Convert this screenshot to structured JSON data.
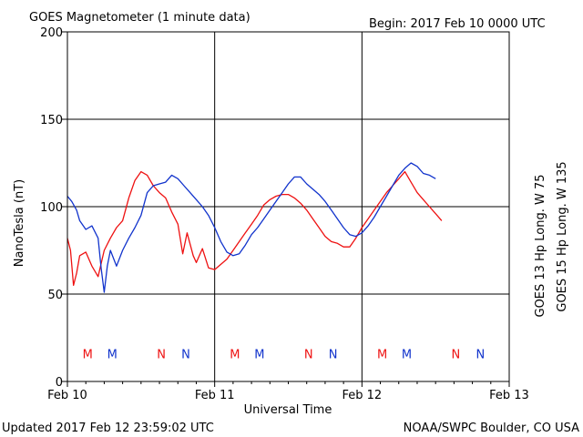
{
  "chart_data": {
    "type": "line",
    "title": "GOES Magnetometer (1 minute data)",
    "begin_label": "Begin:  2017 Feb 10 0000 UTC",
    "xlabel": "Universal Time",
    "ylabel": "NanoTesla (nT)",
    "ylim": [
      0,
      200
    ],
    "xlim": [
      0,
      72
    ],
    "y_ticks": [
      0,
      50,
      100,
      150,
      200
    ],
    "x_ticks": [
      {
        "value": 0,
        "label": "Feb 10"
      },
      {
        "value": 24,
        "label": "Feb 11"
      },
      {
        "value": 48,
        "label": "Feb 12"
      },
      {
        "value": 72,
        "label": "Feb 13"
      }
    ],
    "grid": true,
    "x_unit": "hours since 2017 Feb 10 0000 UTC",
    "series": [
      {
        "name": "GOES 13 Hp  Long. W 75",
        "color": "#ee1111",
        "points": [
          [
            0,
            82
          ],
          [
            0.5,
            75
          ],
          [
            1,
            55
          ],
          [
            1.5,
            62
          ],
          [
            2,
            72
          ],
          [
            3,
            74
          ],
          [
            4,
            66
          ],
          [
            5,
            60
          ],
          [
            6,
            75
          ],
          [
            7,
            82
          ],
          [
            8,
            88
          ],
          [
            9,
            92
          ],
          [
            10,
            105
          ],
          [
            11,
            115
          ],
          [
            12,
            120
          ],
          [
            13,
            118
          ],
          [
            14,
            112
          ],
          [
            15,
            108
          ],
          [
            16,
            105
          ],
          [
            17,
            97
          ],
          [
            18,
            90
          ],
          [
            18.8,
            73
          ],
          [
            19.5,
            85
          ],
          [
            20.5,
            72
          ],
          [
            21,
            68
          ],
          [
            22,
            76
          ],
          [
            23,
            65
          ],
          [
            24,
            64
          ],
          [
            25,
            67
          ],
          [
            26,
            70
          ],
          [
            27,
            75
          ],
          [
            28,
            80
          ],
          [
            29,
            85
          ],
          [
            30,
            90
          ],
          [
            31,
            95
          ],
          [
            32,
            101
          ],
          [
            33,
            104
          ],
          [
            34,
            106
          ],
          [
            35,
            107
          ],
          [
            36,
            107
          ],
          [
            37,
            105
          ],
          [
            38,
            102
          ],
          [
            39,
            98
          ],
          [
            40,
            93
          ],
          [
            41,
            88
          ],
          [
            42,
            83
          ],
          [
            43,
            80
          ],
          [
            44,
            79
          ],
          [
            45,
            77
          ],
          [
            46,
            77
          ],
          [
            47,
            82
          ],
          [
            48,
            88
          ],
          [
            49,
            93
          ],
          [
            50,
            98
          ],
          [
            51,
            103
          ],
          [
            52,
            108
          ],
          [
            53,
            112
          ],
          [
            54,
            116
          ],
          [
            55,
            120
          ],
          [
            56,
            114
          ],
          [
            57,
            108
          ],
          [
            58,
            104
          ],
          [
            59,
            100
          ],
          [
            60,
            96
          ],
          [
            61,
            92
          ]
        ]
      },
      {
        "name": "GOES 15 Hp  Long. W 135",
        "color": "#1133cc",
        "points": [
          [
            0,
            106
          ],
          [
            0.7,
            103
          ],
          [
            1.5,
            98
          ],
          [
            2,
            92
          ],
          [
            3,
            87
          ],
          [
            4,
            89
          ],
          [
            5,
            82
          ],
          [
            5.5,
            65
          ],
          [
            6,
            51
          ],
          [
            6.5,
            66
          ],
          [
            7,
            75
          ],
          [
            8,
            66
          ],
          [
            9,
            75
          ],
          [
            10,
            82
          ],
          [
            11,
            88
          ],
          [
            12,
            95
          ],
          [
            13,
            108
          ],
          [
            14,
            112
          ],
          [
            15,
            113
          ],
          [
            16,
            114
          ],
          [
            17,
            118
          ],
          [
            18,
            116
          ],
          [
            19,
            112
          ],
          [
            20,
            108
          ],
          [
            21,
            104
          ],
          [
            22,
            100
          ],
          [
            23,
            95
          ],
          [
            24,
            88
          ],
          [
            25,
            80
          ],
          [
            26,
            74
          ],
          [
            27,
            72
          ],
          [
            28,
            73
          ],
          [
            29,
            78
          ],
          [
            30,
            84
          ],
          [
            31,
            88
          ],
          [
            32,
            93
          ],
          [
            33,
            98
          ],
          [
            34,
            103
          ],
          [
            35,
            108
          ],
          [
            36,
            113
          ],
          [
            37,
            117
          ],
          [
            38,
            117
          ],
          [
            39,
            113
          ],
          [
            40,
            110
          ],
          [
            41,
            107
          ],
          [
            42,
            103
          ],
          [
            43,
            98
          ],
          [
            44,
            93
          ],
          [
            45,
            88
          ],
          [
            46,
            84
          ],
          [
            47,
            83
          ],
          [
            48,
            85
          ],
          [
            49,
            89
          ],
          [
            50,
            94
          ],
          [
            51,
            100
          ],
          [
            52,
            106
          ],
          [
            53,
            112
          ],
          [
            54,
            118
          ],
          [
            55,
            122
          ],
          [
            56,
            125
          ],
          [
            57,
            123
          ],
          [
            58,
            119
          ],
          [
            59,
            118
          ],
          [
            60,
            116
          ]
        ]
      }
    ],
    "mn_markers": [
      {
        "letter": "M",
        "x": 3.3,
        "color": "#ee1111"
      },
      {
        "letter": "M",
        "x": 7.3,
        "color": "#1133cc"
      },
      {
        "letter": "N",
        "x": 15.3,
        "color": "#ee1111"
      },
      {
        "letter": "N",
        "x": 19.3,
        "color": "#1133cc"
      },
      {
        "letter": "M",
        "x": 27.3,
        "color": "#ee1111"
      },
      {
        "letter": "M",
        "x": 31.3,
        "color": "#1133cc"
      },
      {
        "letter": "N",
        "x": 39.3,
        "color": "#ee1111"
      },
      {
        "letter": "N",
        "x": 43.3,
        "color": "#1133cc"
      },
      {
        "letter": "M",
        "x": 51.3,
        "color": "#ee1111"
      },
      {
        "letter": "M",
        "x": 55.3,
        "color": "#1133cc"
      },
      {
        "letter": "N",
        "x": 63.3,
        "color": "#ee1111"
      },
      {
        "letter": "N",
        "x": 67.3,
        "color": "#1133cc"
      }
    ],
    "marker_level": 16
  },
  "footer": {
    "updated": "Updated 2017 Feb 12 23:59:02 UTC",
    "source": "NOAA/SWPC Boulder, CO USA"
  }
}
